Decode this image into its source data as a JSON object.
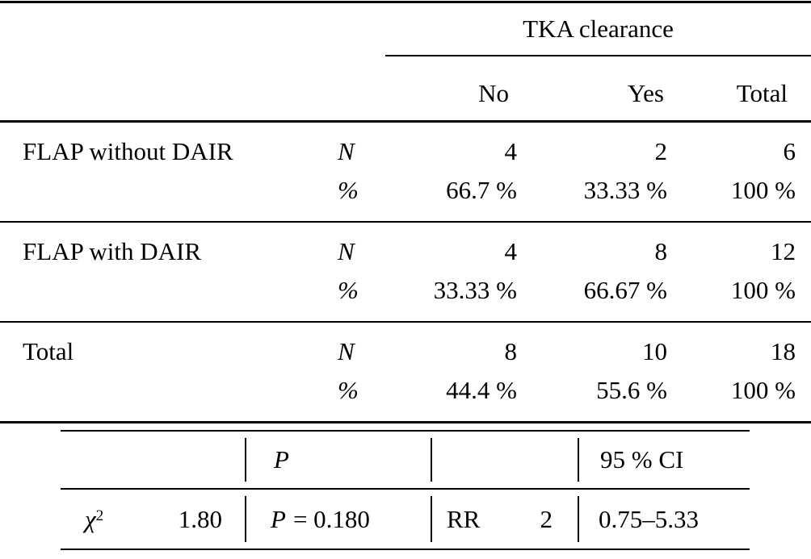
{
  "table": {
    "header": {
      "group_label": "TKA clearance",
      "col_no": "No",
      "col_yes": "Yes",
      "col_total": "Total"
    },
    "rows": [
      {
        "label": "FLAP without DAIR",
        "n_label": "N",
        "pct_label": "%",
        "n_no": "4",
        "n_yes": "2",
        "n_total": "6",
        "pct_no": "66.7 %",
        "pct_yes": "33.33 %",
        "pct_total": "100 %"
      },
      {
        "label": "FLAP with DAIR",
        "n_label": "N",
        "pct_label": "%",
        "n_no": "4",
        "n_yes": "8",
        "n_total": "12",
        "pct_no": "33.33 %",
        "pct_yes": "66.67 %",
        "pct_total": "100 %"
      },
      {
        "label": "Total",
        "n_label": "N",
        "pct_label": "%",
        "n_no": "8",
        "n_yes": "10",
        "n_total": "18",
        "pct_no": "44.4 %",
        "pct_yes": "55.6 %",
        "pct_total": "100 %"
      }
    ],
    "stats": {
      "header": {
        "p_col": "P",
        "ci_col": "95 % CI"
      },
      "row": {
        "stat_symbol": "χ",
        "stat_exponent": "2",
        "stat_value": "1.80",
        "p_label": "P",
        "p_value": "= 0.180",
        "rr_label": "RR",
        "rr_value": "2",
        "ci_value": "0.75–5.33"
      }
    }
  }
}
